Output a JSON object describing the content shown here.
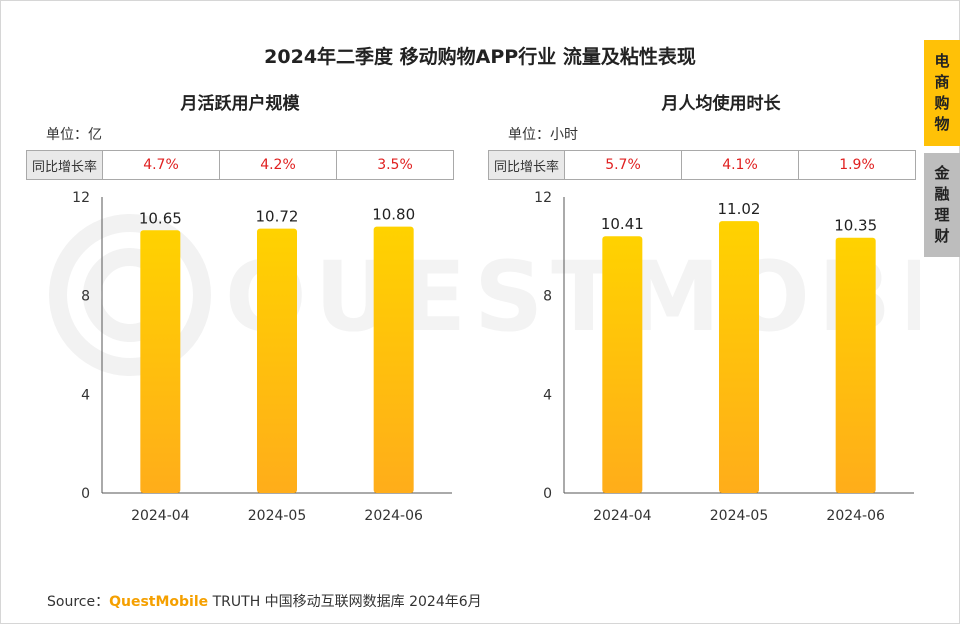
{
  "main_title": "2024年二季度 移动购物APP行业 流量及粘性表现",
  "side_tabs": [
    {
      "label": [
        "电",
        "商",
        "购",
        "物"
      ],
      "active": true
    },
    {
      "label": [
        "金",
        "融",
        "理",
        "财"
      ],
      "active": false
    }
  ],
  "source": {
    "prefix": "Source：",
    "brand": "QuestMobile",
    "suffix": "TRUTH 中国移动互联网数据库 2024年6月"
  },
  "colors": {
    "bar_top": "#ffd200",
    "bar_bottom": "#ffad1a",
    "yoy_text": "#e02020",
    "tab_active": "#ffc107",
    "tab_inactive": "#bdbdbd"
  },
  "chart_data": [
    {
      "type": "bar",
      "title": "月活跃用户规模",
      "unit": "单位：亿",
      "yoy_label": "同比增长率",
      "yoy": [
        "4.7%",
        "4.2%",
        "3.5%"
      ],
      "categories": [
        "2024-04",
        "2024-05",
        "2024-06"
      ],
      "values": [
        10.65,
        10.72,
        10.8
      ],
      "value_labels": [
        "10.65",
        "10.72",
        "10.80"
      ],
      "ylim": [
        0,
        12
      ],
      "yticks": [
        0,
        4,
        8,
        12
      ],
      "grid": false
    },
    {
      "type": "bar",
      "title": "月人均使用时长",
      "unit": "单位：小时",
      "yoy_label": "同比增长率",
      "yoy": [
        "5.7%",
        "4.1%",
        "1.9%"
      ],
      "categories": [
        "2024-04",
        "2024-05",
        "2024-06"
      ],
      "values": [
        10.41,
        11.02,
        10.35
      ],
      "value_labels": [
        "10.41",
        "11.02",
        "10.35"
      ],
      "ylim": [
        0,
        12
      ],
      "yticks": [
        0,
        4,
        8,
        12
      ],
      "grid": false
    }
  ]
}
